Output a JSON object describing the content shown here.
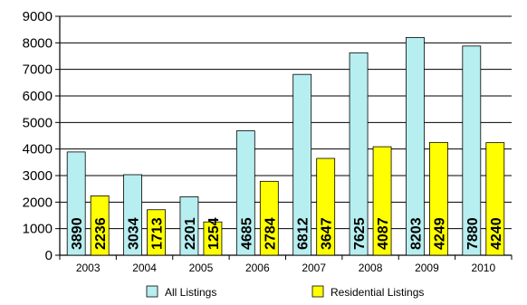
{
  "chart_data": {
    "type": "bar",
    "categories": [
      "2003",
      "2004",
      "2005",
      "2006",
      "2007",
      "2008",
      "2009",
      "2010"
    ],
    "series": [
      {
        "name": "All Listings",
        "color": "#b7eef0",
        "values": [
          3890,
          3034,
          2201,
          4685,
          6812,
          7625,
          8203,
          7880
        ],
        "data_labels": [
          "3890",
          "3034",
          "2201",
          "4685",
          "6812",
          "7625",
          "8203",
          "7880"
        ]
      },
      {
        "name": "Residential Listings",
        "color": "#ffff00",
        "values": [
          2236,
          1713,
          1254,
          2784,
          3647,
          4087,
          4249,
          4240
        ],
        "data_labels": [
          "2236",
          "1713",
          "1254",
          "2784",
          "3647",
          "4087",
          "4249",
          "4240"
        ]
      }
    ],
    "ylim": [
      0,
      9000
    ],
    "yticks": [
      "0",
      "1000",
      "2000",
      "3000",
      "4000",
      "5000",
      "6000",
      "7000",
      "8000",
      "9000"
    ],
    "grid": true,
    "legend_position": "bottom",
    "bar_outline_color": "#000000",
    "grid_color": "#000000"
  }
}
